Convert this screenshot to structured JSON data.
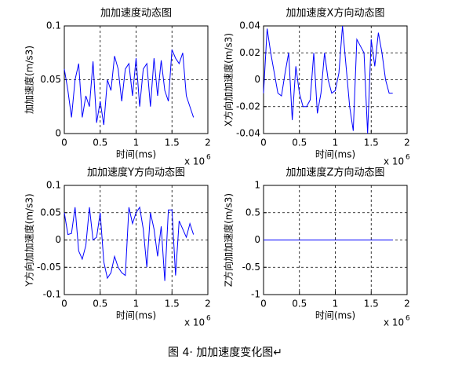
{
  "chart_data": [
    {
      "type": "line",
      "title": "加加速度动态图",
      "xlabel": "时间(ms)",
      "ylabel": "加加速度(m/s3)",
      "x_scale_label": "x 10",
      "x_scale_exponent": "6",
      "x": [
        0,
        0.05,
        0.1,
        0.15,
        0.2,
        0.25,
        0.3,
        0.35,
        0.4,
        0.45,
        0.5,
        0.55,
        0.6,
        0.65,
        0.7,
        0.75,
        0.8,
        0.85,
        0.9,
        0.95,
        1.0,
        1.05,
        1.1,
        1.15,
        1.2,
        1.25,
        1.3,
        1.35,
        1.4,
        1.45,
        1.5,
        1.55,
        1.6,
        1.65,
        1.7,
        1.75,
        1.8
      ],
      "series": [
        {
          "color": "#0000ff",
          "values": [
            0.06,
            0.04,
            0.015,
            0.05,
            0.065,
            0.015,
            0.035,
            0.025,
            0.067,
            0.01,
            0.03,
            0.008,
            0.05,
            0.04,
            0.072,
            0.06,
            0.03,
            0.06,
            0.065,
            0.035,
            0.07,
            0.025,
            0.06,
            0.065,
            0.025,
            0.07,
            0.035,
            0.068,
            0.04,
            0.03,
            0.078,
            0.07,
            0.065,
            0.075,
            0.035,
            0.025,
            0.015
          ]
        }
      ],
      "xlim": [
        0,
        2
      ],
      "xticks": [
        0,
        0.5,
        1,
        1.5,
        2
      ],
      "ylim": [
        0,
        0.1
      ],
      "yticks": [
        0,
        0.05,
        0.1
      ],
      "grid": true
    },
    {
      "type": "line",
      "title": "加加速度X方向动态图",
      "xlabel": "时间(ms)",
      "ylabel": "X方向加加速度(m/s3)",
      "x_scale_label": "x 10",
      "x_scale_exponent": "6",
      "x": [
        0,
        0.05,
        0.1,
        0.15,
        0.2,
        0.25,
        0.3,
        0.35,
        0.4,
        0.45,
        0.5,
        0.55,
        0.6,
        0.65,
        0.7,
        0.75,
        0.8,
        0.85,
        0.9,
        0.95,
        1.0,
        1.05,
        1.1,
        1.15,
        1.2,
        1.25,
        1.3,
        1.35,
        1.4,
        1.45,
        1.5,
        1.55,
        1.6,
        1.65,
        1.7,
        1.75,
        1.8
      ],
      "series": [
        {
          "color": "#0000ff",
          "values": [
            -0.01,
            0.038,
            0.02,
            0.005,
            -0.01,
            -0.012,
            0.005,
            0.02,
            -0.03,
            0.01,
            -0.01,
            -0.02,
            -0.02,
            -0.015,
            0.02,
            -0.025,
            -0.01,
            0.02,
            0,
            -0.01,
            -0.008,
            0.005,
            0.04,
            0.01,
            -0.02,
            -0.038,
            0.03,
            0.025,
            0.02,
            -0.04,
            0.03,
            0.01,
            0.035,
            0.02,
            0,
            -0.01,
            -0.01
          ]
        }
      ],
      "xlim": [
        0,
        2
      ],
      "xticks": [
        0,
        0.5,
        1,
        1.5,
        2
      ],
      "ylim": [
        -0.04,
        0.04
      ],
      "yticks": [
        -0.04,
        -0.02,
        0,
        0.02,
        0.04
      ],
      "grid": true
    },
    {
      "type": "line",
      "title": "加加速度Y方向动态图",
      "xlabel": "时间(ms)",
      "ylabel": "Y方向加加速度(m/s3)",
      "x_scale_label": "x 10",
      "x_scale_exponent": "6",
      "x": [
        0,
        0.05,
        0.1,
        0.15,
        0.2,
        0.25,
        0.3,
        0.35,
        0.4,
        0.45,
        0.5,
        0.55,
        0.6,
        0.65,
        0.7,
        0.75,
        0.8,
        0.85,
        0.9,
        0.95,
        1.0,
        1.05,
        1.1,
        1.15,
        1.2,
        1.25,
        1.3,
        1.35,
        1.4,
        1.45,
        1.5,
        1.55,
        1.6,
        1.65,
        1.7,
        1.75,
        1.8
      ],
      "series": [
        {
          "color": "#0000ff",
          "values": [
            0.05,
            0.01,
            0.012,
            0.06,
            -0.02,
            -0.035,
            -0.01,
            0.06,
            0,
            0.005,
            0.05,
            -0.04,
            -0.07,
            -0.06,
            -0.03,
            -0.05,
            -0.06,
            -0.065,
            0.06,
            0.03,
            0.05,
            0.06,
            0.02,
            -0.05,
            0.05,
            0.02,
            -0.03,
            0.025,
            -0.075,
            0.055,
            0.055,
            -0.065,
            0.035,
            0.02,
            0.005,
            0.03,
            0.01
          ]
        }
      ],
      "xlim": [
        0,
        2
      ],
      "xticks": [
        0,
        0.5,
        1,
        1.5,
        2
      ],
      "ylim": [
        -0.1,
        0.1
      ],
      "yticks": [
        -0.1,
        -0.05,
        0,
        0.05,
        0.1
      ],
      "grid": true
    },
    {
      "type": "line",
      "title": "加加速度Z方向动态图",
      "xlabel": "时间(ms)",
      "ylabel": "Z方向加加速度(m/s3)",
      "x_scale_label": "x 10",
      "x_scale_exponent": "6",
      "x": [
        0,
        0.05,
        0.1,
        0.15,
        0.2,
        0.25,
        0.3,
        0.35,
        0.4,
        0.45,
        0.5,
        0.55,
        0.6,
        0.65,
        0.7,
        0.75,
        0.8,
        0.85,
        0.9,
        0.95,
        1.0,
        1.05,
        1.1,
        1.15,
        1.2,
        1.25,
        1.3,
        1.35,
        1.4,
        1.45,
        1.5,
        1.55,
        1.6,
        1.65,
        1.7,
        1.75,
        1.8
      ],
      "series": [
        {
          "color": "#0000ff",
          "values": [
            0,
            0,
            0,
            0,
            0,
            0,
            0,
            0,
            0,
            0,
            0,
            0,
            0,
            0,
            0,
            0,
            0,
            0,
            0,
            0,
            0,
            0,
            0,
            0,
            0,
            0,
            0,
            0,
            0,
            0,
            0,
            0,
            0,
            0,
            0,
            0,
            0
          ]
        }
      ],
      "xlim": [
        0,
        2
      ],
      "xticks": [
        0,
        0.5,
        1,
        1.5,
        2
      ],
      "ylim": [
        -1,
        1
      ],
      "yticks": [
        -1,
        -0.5,
        0,
        0.5,
        1
      ],
      "grid": true
    }
  ],
  "caption": "图 4· 加加速度变化图↵"
}
